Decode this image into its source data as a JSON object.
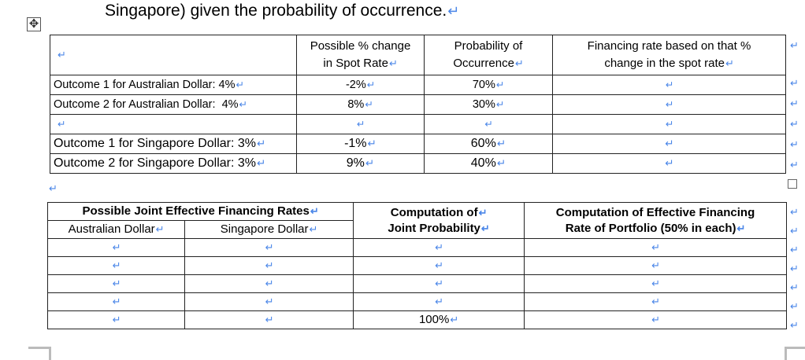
{
  "heading": "Singapore) given the probability of occurrence.",
  "mark": "↵",
  "table1": {
    "headers": [
      "",
      "Possible % change\nin Spot Rate",
      "Probability of\nOccurrence",
      "Financing rate based on that %\nchange in the spot rate"
    ],
    "rows": [
      {
        "label": "Outcome 1 for Australian Dollar: 4%",
        "change": "-2%",
        "prob": "70%",
        "rate": ""
      },
      {
        "label": "Outcome 2 for Australian Dollar:  4%",
        "change": "8%",
        "prob": "30%",
        "rate": ""
      },
      {
        "label": "",
        "change": "",
        "prob": "",
        "rate": ""
      },
      {
        "label": "Outcome 1 for Singapore Dollar: 3%",
        "change": "-1%",
        "prob": "60%",
        "rate": ""
      },
      {
        "label": "Outcome 2 for Singapore Dollar: 3%",
        "change": "9%",
        "prob": "40%",
        "rate": ""
      }
    ]
  },
  "table2": {
    "group_header": "Possible Joint Effective Financing Rates",
    "sub_headers": [
      "Australian Dollar",
      "Singapore Dollar"
    ],
    "joint_header": "Computation of\nJoint Probability",
    "portfolio_header": "Computation of Effective Financing\nRate of Portfolio (50% in each)",
    "rows": [
      {
        "aud": "",
        "sgd": "",
        "joint": "",
        "portfolio": ""
      },
      {
        "aud": "",
        "sgd": "",
        "joint": "",
        "portfolio": ""
      },
      {
        "aud": "",
        "sgd": "",
        "joint": "",
        "portfolio": ""
      },
      {
        "aud": "",
        "sgd": "",
        "joint": "",
        "portfolio": ""
      },
      {
        "aud": "",
        "sgd": "",
        "joint": "100%",
        "portfolio": ""
      }
    ]
  }
}
